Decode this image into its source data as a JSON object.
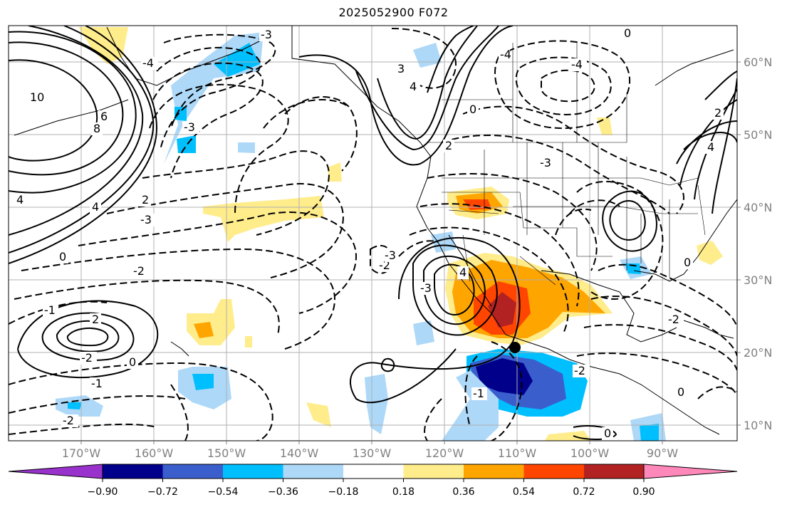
{
  "title": "2025052900 F072",
  "map": {
    "lat_labels": [
      "60°N",
      "50°N",
      "40°N",
      "30°N",
      "20°N",
      "10°N"
    ],
    "lon_labels": [
      "170°W",
      "160°W",
      "150°W",
      "140°W",
      "130°W",
      "120°W",
      "110°W",
      "100°W",
      "90°W"
    ],
    "contour_labels": [
      "10",
      "8",
      "6",
      "4",
      "4",
      "2",
      "0",
      "-1",
      "-2",
      "2",
      "-2",
      "-2",
      "-3",
      "-3",
      "-4",
      "-3",
      "4",
      "3",
      "0",
      "0",
      "-2",
      "-3",
      "-4",
      "4",
      "2",
      "4",
      "0",
      "-1",
      "0",
      "0",
      "-1",
      "-2",
      "-2",
      "2",
      "0",
      "-3",
      "-4",
      "-3"
    ]
  },
  "colorbar": {
    "ticks": [
      "−0.90",
      "−0.72",
      "−0.54",
      "−0.36",
      "−0.18",
      "0.18",
      "0.36",
      "0.54",
      "0.72",
      "0.90"
    ],
    "colors": [
      "#9932cc",
      "#00008b",
      "#3a5fcd",
      "#00bfff",
      "#add8f8",
      "#ffffff",
      "#ffec8b",
      "#ffa500",
      "#ff4500",
      "#b22222",
      "#ff88bb"
    ]
  }
}
